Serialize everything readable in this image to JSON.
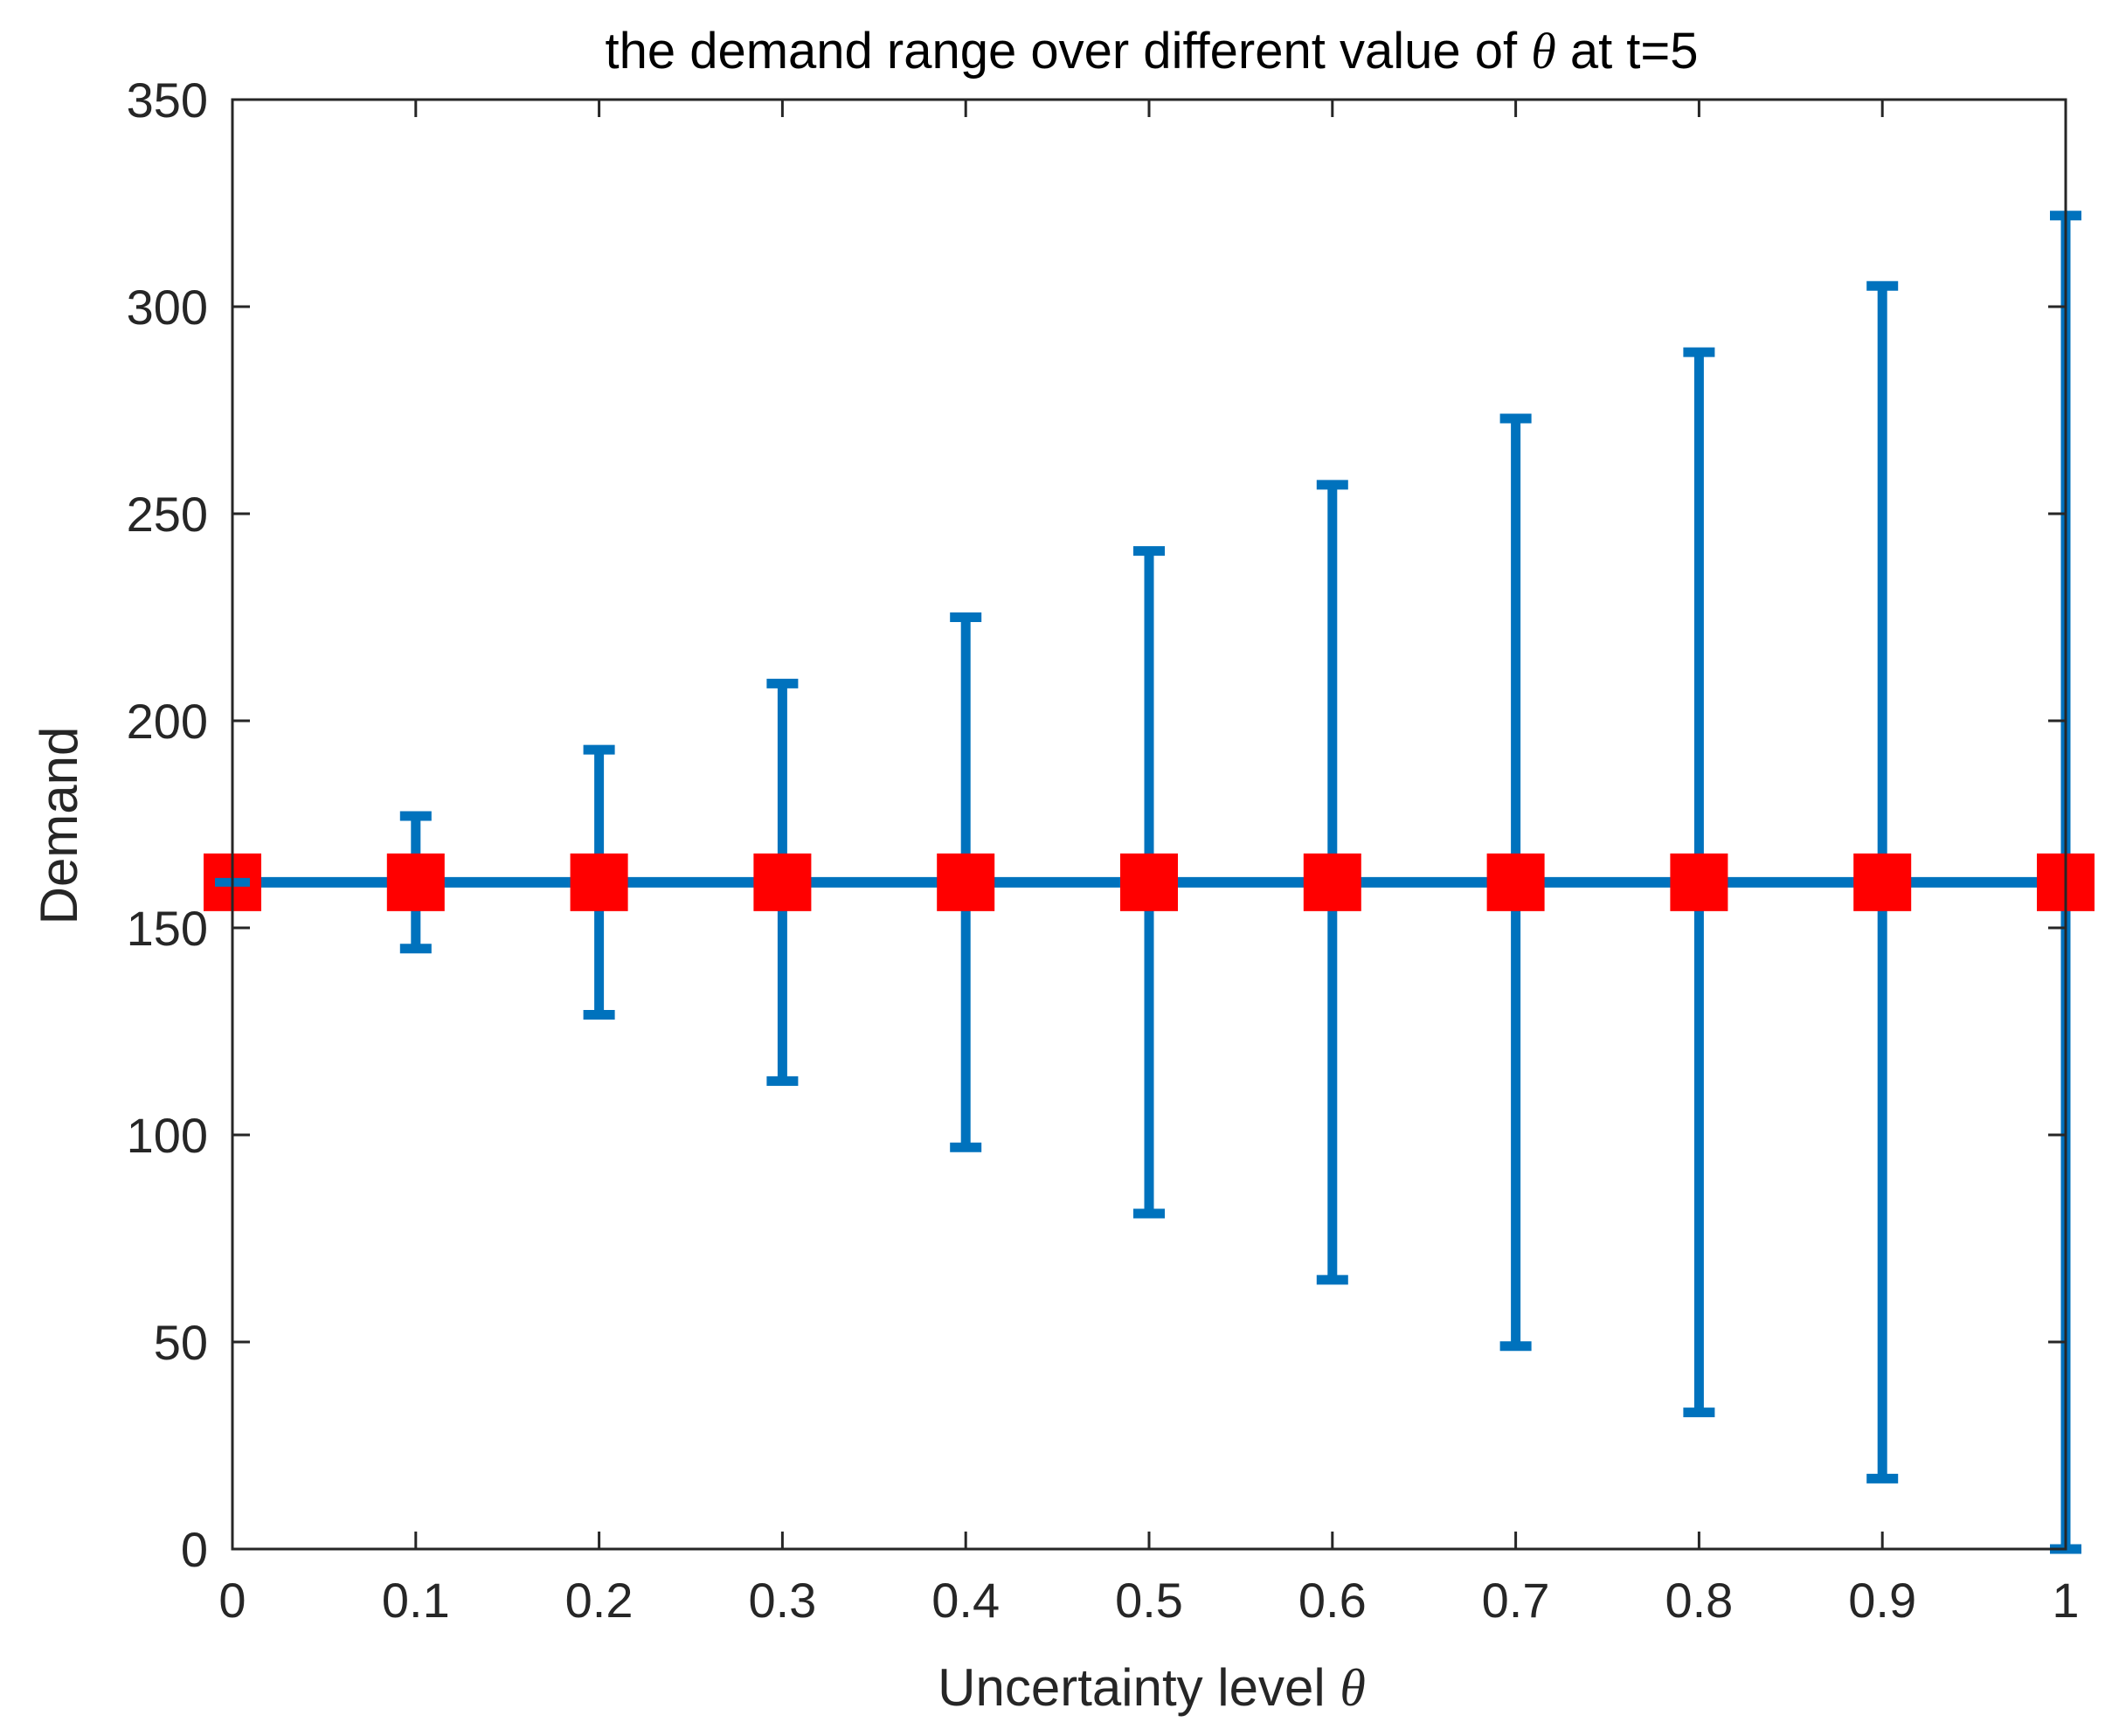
{
  "chart_data": {
    "type": "errorbar",
    "title": {
      "prefix": "the demand range over different value of ",
      "symbol": "θ",
      "suffix": " at t=5"
    },
    "xlabel": {
      "text": "Uncertainty level ",
      "symbol": "θ"
    },
    "ylabel": "Demand",
    "xlim": [
      0,
      1
    ],
    "ylim": [
      0,
      350
    ],
    "x_ticks": [
      0,
      0.1,
      0.2,
      0.3,
      0.4,
      0.5,
      0.6,
      0.7,
      0.8,
      0.9,
      1
    ],
    "x_tick_labels": [
      "0",
      "0.1",
      "0.2",
      "0.3",
      "0.4",
      "0.5",
      "0.6",
      "0.7",
      "0.8",
      "0.9",
      "1"
    ],
    "y_ticks": [
      0,
      50,
      100,
      150,
      200,
      250,
      300,
      350
    ],
    "y_tick_labels": [
      "0",
      "50",
      "100",
      "150",
      "200",
      "250",
      "300",
      "350"
    ],
    "grid": false,
    "series": [
      {
        "name": "demand range",
        "x": [
          0,
          0.1,
          0.2,
          0.3,
          0.4,
          0.5,
          0.6,
          0.7,
          0.8,
          0.9,
          1
        ],
        "y": [
          161,
          161,
          161,
          161,
          161,
          161,
          161,
          161,
          161,
          161,
          161
        ],
        "lower": [
          161,
          145,
          129,
          113,
          97,
          81,
          65,
          49,
          33,
          17,
          0
        ],
        "upper": [
          161,
          177,
          193,
          209,
          225,
          241,
          257,
          273,
          289,
          305,
          322
        ],
        "line_color": "#0072BD",
        "marker_color": "#FF0000",
        "marker": "square"
      }
    ]
  },
  "colors": {
    "axis": "#262626",
    "background": "#FFFFFF",
    "title": "#000000"
  }
}
